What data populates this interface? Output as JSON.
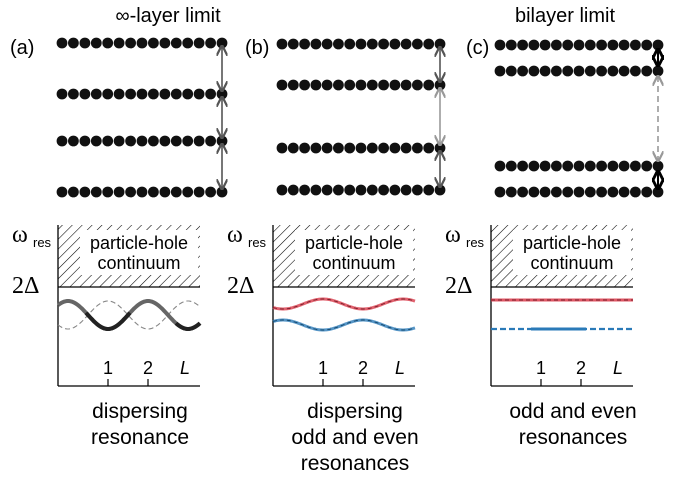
{
  "header": {
    "left_title": "∞-layer limit",
    "right_title": "bilayer limit"
  },
  "panels": [
    {
      "id": "a",
      "label": "(a)",
      "layers": "four equally spaced layers",
      "arrow_style": "uniform dark gray double arrows",
      "ylabel_main": "ω",
      "ylabel_sub": "res",
      "gap_label": "2Δ",
      "continuum_label_line1": "particle-hole",
      "continuum_label_line2": "continuum",
      "tick_1": "1",
      "tick_2": "2",
      "xlabel": "L",
      "caption_line1": "dispersing",
      "caption_line2": "resonance",
      "caption_line3": ""
    },
    {
      "id": "b",
      "label": "(b)",
      "layers": "two bilayers, slightly different spacing",
      "arrow_style": "dark intra-bilayer arrows, light inter-bilayer arrow",
      "ylabel_main": "ω",
      "ylabel_sub": "res",
      "gap_label": "2Δ",
      "continuum_label_line1": "particle-hole",
      "continuum_label_line2": "continuum",
      "tick_1": "1",
      "tick_2": "2",
      "xlabel": "L",
      "caption_line1": "dispersing",
      "caption_line2": "odd and even",
      "caption_line3": "resonances"
    },
    {
      "id": "c",
      "label": "(c)",
      "layers": "two well separated bilayers",
      "arrow_style": "short black intra-bilayer arrows, dashed gray inter-bilayer arrow",
      "ylabel_main": "ω",
      "ylabel_sub": "res",
      "gap_label": "2Δ",
      "continuum_label_line1": "particle-hole",
      "continuum_label_line2": "continuum",
      "tick_1": "1",
      "tick_2": "2",
      "xlabel": "L",
      "caption_line1": "odd and even",
      "caption_line2": "resonances",
      "caption_line3": ""
    }
  ],
  "colors": {
    "odd": "#d9394a",
    "even": "#2a7ab8",
    "dispersion_dark": "#222222",
    "dispersion_gray": "#666666",
    "arrow_dark": "#555555",
    "arrow_light": "#999999"
  }
}
